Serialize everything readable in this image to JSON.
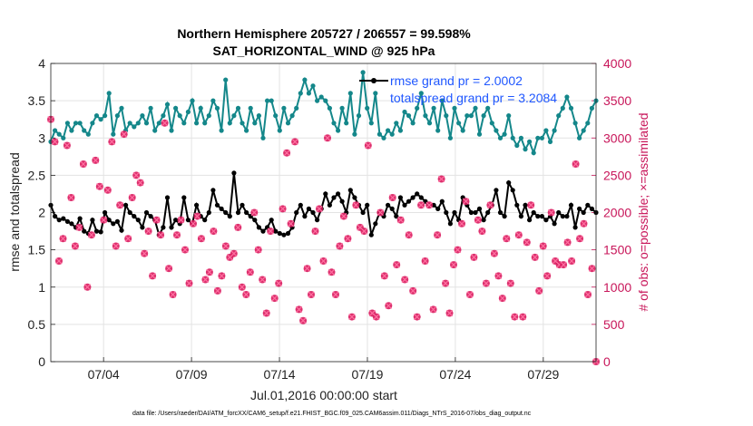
{
  "chart_data": {
    "type": "line",
    "title": "Northern Hemisphere 205727 / 206557 = 99.598%",
    "subtitle": "SAT_HORIZONTAL_WIND @ 925 hPa",
    "xlabel": "Jul.01,2016 00:00:00 start",
    "ylabel_left": "rmse and totalspread",
    "ylabel_right": "# of obs: o=possible; ×=assimilated",
    "ylim_left": [
      0,
      4
    ],
    "ylim_right": [
      0,
      4000
    ],
    "xlim_days": [
      1,
      32
    ],
    "x_ticks": [
      "07/04",
      "07/09",
      "07/14",
      "07/19",
      "07/24",
      "07/29"
    ],
    "y_ticks_left": [
      "0",
      "0.5",
      "1",
      "1.5",
      "2",
      "2.5",
      "3",
      "3.5",
      "4"
    ],
    "y_ticks_right": [
      "0",
      "500",
      "1000",
      "1500",
      "2000",
      "2500",
      "3000",
      "3500",
      "4000"
    ],
    "grid": true,
    "legend_position": "top-right",
    "legend": [
      "rmse grand pr = 2.0002",
      "totalspread grand pr = 3.2084"
    ],
    "footer": "data file: /Users/raeder/DAI/ATM_forcXX/CAM6_setup/f.e21.FHIST_BGC.f09_025.CAM6assim.011/Diags_NTrS_2016-07/obs_diag_output.nc",
    "series": [
      {
        "name": "rmse grand pr = 2.0002",
        "color": "#000000",
        "axis": "left",
        "y": [
          2.1,
          1.95,
          1.9,
          1.92,
          1.88,
          1.85,
          1.8,
          1.92,
          1.75,
          1.72,
          1.9,
          1.75,
          1.74,
          2.0,
          1.9,
          1.85,
          1.88,
          1.76,
          2.1,
          2.0,
          1.95,
          1.9,
          1.8,
          2.0,
          1.95,
          1.9,
          1.7,
          1.8,
          2.2,
          1.8,
          1.9,
          1.85,
          2.2,
          1.9,
          1.85,
          2.1,
          1.95,
          1.9,
          2.0,
          2.3,
          2.1,
          2.05,
          2.0,
          1.95,
          2.53,
          2.0,
          2.1,
          2.0,
          1.95,
          1.9,
          1.8,
          1.75,
          1.8,
          1.9,
          1.75,
          1.72,
          1.7,
          1.72,
          1.8,
          2.0,
          2.1,
          1.95,
          2.05,
          2.0,
          1.9,
          2.05,
          2.25,
          2.1,
          2.2,
          2.25,
          2.15,
          2.0,
          2.3,
          2.2,
          2.1,
          2.0,
          2.1,
          1.7,
          1.85,
          2.0,
          1.95,
          2.1,
          2.05,
          1.95,
          2.2,
          2.1,
          2.15,
          2.2,
          2.25,
          2.2,
          2.15,
          2.1,
          2.1,
          2.05,
          2.15,
          2.0,
          1.85,
          2.0,
          1.9,
          2.2,
          2.1,
          2.0,
          2.0,
          2.05,
          1.9,
          2.0,
          2.1,
          2.3,
          2.0,
          1.95,
          2.4,
          2.3,
          2.1,
          1.95,
          2.1,
          1.9,
          2.0,
          1.95,
          1.95,
          1.9,
          1.95,
          1.85,
          2.0,
          1.95,
          1.95,
          2.1,
          1.8,
          2.05,
          2.0,
          2.1,
          2.05,
          2.0
        ]
      },
      {
        "name": "totalspread grand pr = 3.2084",
        "color": "#14878a",
        "axis": "left",
        "y": [
          2.95,
          3.1,
          3.05,
          3.0,
          3.2,
          3.1,
          3.2,
          3.2,
          3.1,
          3.05,
          3.2,
          3.3,
          3.25,
          3.3,
          3.6,
          3.05,
          3.3,
          3.4,
          3.1,
          3.2,
          3.15,
          3.2,
          3.3,
          3.2,
          3.4,
          3.1,
          3.2,
          3.3,
          3.45,
          3.1,
          3.4,
          3.3,
          3.2,
          3.35,
          3.5,
          3.2,
          3.4,
          3.2,
          3.3,
          3.5,
          3.4,
          3.1,
          3.78,
          3.2,
          3.3,
          3.4,
          3.2,
          3.1,
          3.4,
          3.2,
          3.3,
          3.0,
          3.5,
          3.5,
          3.3,
          3.1,
          3.4,
          3.2,
          3.3,
          3.4,
          3.6,
          3.78,
          3.6,
          3.7,
          3.5,
          3.55,
          3.5,
          3.4,
          3.2,
          3.1,
          3.4,
          3.2,
          3.6,
          3.05,
          3.3,
          3.88,
          3.4,
          3.2,
          3.6,
          3.05,
          3.0,
          3.1,
          3.05,
          3.2,
          3.1,
          3.35,
          3.3,
          3.2,
          3.4,
          3.6,
          3.3,
          3.2,
          3.4,
          3.1,
          3.5,
          3.3,
          3.0,
          3.4,
          3.2,
          3.1,
          3.3,
          3.3,
          3.4,
          3.05,
          3.3,
          3.4,
          3.2,
          3.1,
          3.0,
          3.05,
          3.3,
          3.0,
          2.9,
          3.0,
          2.85,
          2.95,
          2.8,
          3.0,
          3.0,
          3.1,
          2.95,
          3.1,
          3.3,
          3.4,
          3.55,
          3.4,
          3.2,
          3.0,
          3.1,
          3.2,
          3.4,
          3.5
        ]
      },
      {
        "name": "possible",
        "color": "#d81b5e",
        "axis": "right",
        "marker": "o",
        "y": [
          3250,
          2950,
          1350,
          1650,
          2900,
          2200,
          1550,
          1800,
          2650,
          1000,
          1700,
          2700,
          2350,
          1900,
          2300,
          2950,
          1550,
          2100,
          3050,
          1650,
          2200,
          2500,
          2400,
          1450,
          1750,
          1150,
          1900,
          1700,
          3200,
          1250,
          900,
          1700,
          1900,
          1500,
          1050,
          1850,
          1950,
          1650,
          1100,
          1200,
          1750,
          950,
          1150,
          1550,
          1400,
          1450,
          1800,
          1000,
          900,
          1200,
          2000,
          1500,
          1100,
          650,
          1750,
          850,
          1050,
          2050,
          2800,
          1850,
          2950,
          700,
          550,
          1250,
          900,
          1750,
          2050,
          1350,
          3000,
          1200,
          900,
          1550,
          1950,
          1650,
          600,
          2100,
          1800,
          1750,
          2900,
          650,
          600,
          2000,
          1150,
          750,
          2200,
          1300,
          1900,
          1100,
          1700,
          950,
          600,
          2100,
          1350,
          2100,
          700,
          1700,
          2450,
          1050,
          650,
          1300,
          1500,
          1850,
          2150,
          900,
          1400,
          1900,
          1750,
          1050,
          2100,
          1450,
          1150,
          850,
          1650,
          1050,
          600,
          1700,
          600,
          1600,
          2100,
          1400,
          950,
          1550,
          1150,
          2000,
          1350,
          1300,
          1300,
          1600,
          1350,
          2650,
          1650,
          1850,
          900,
          1250,
          0
        ]
      }
    ]
  }
}
